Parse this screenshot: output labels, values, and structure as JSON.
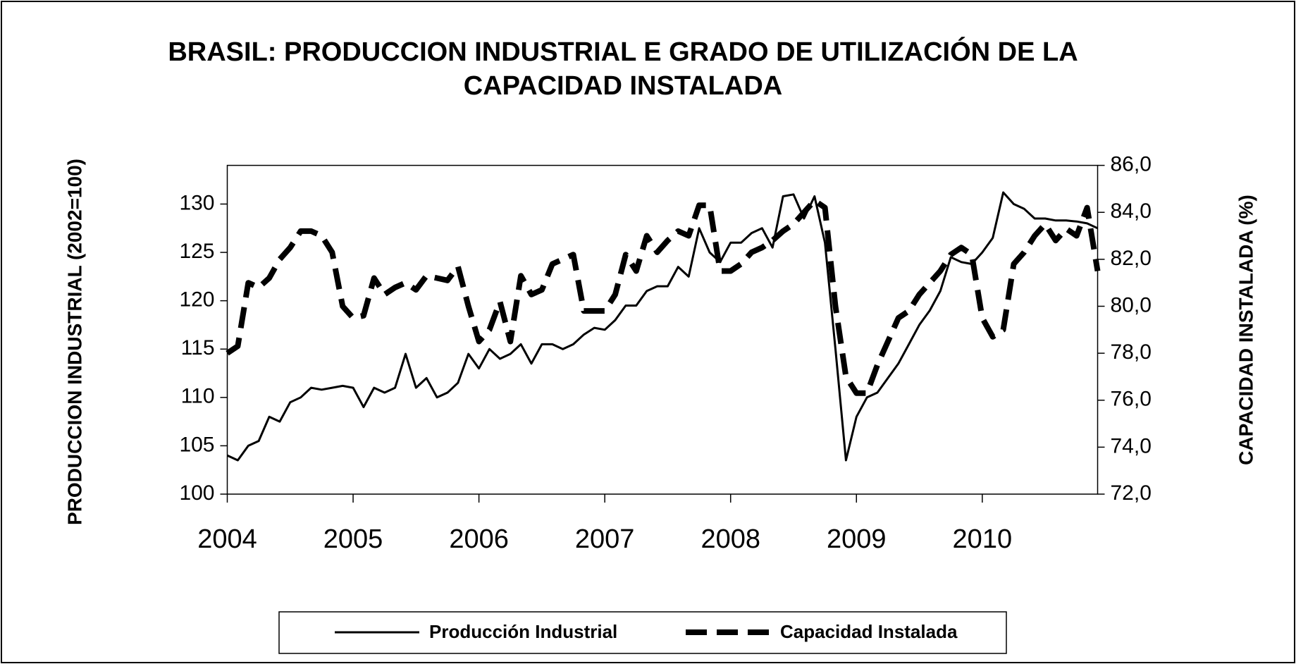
{
  "chart_data": {
    "type": "line",
    "title": [
      "BRASIL: PRODUCCION INDUSTRIAL E GRADO DE  UTILIZACIÓN DE LA",
      "CAPACIDAD INSTALADA"
    ],
    "y_label": "PRODUCCION INDUSTRIAL  (2002=100)",
    "y2_label": "CAPACIDAD INSTALADA (%)",
    "categories": [
      "2004",
      null,
      null,
      null,
      null,
      null,
      null,
      null,
      null,
      null,
      null,
      null,
      "2005",
      null,
      null,
      null,
      null,
      null,
      null,
      null,
      null,
      null,
      null,
      null,
      "2006",
      null,
      null,
      null,
      null,
      null,
      null,
      null,
      null,
      null,
      null,
      null,
      "2007",
      null,
      null,
      null,
      null,
      null,
      null,
      null,
      null,
      null,
      null,
      null,
      "2008",
      null,
      null,
      null,
      null,
      null,
      null,
      null,
      null,
      null,
      null,
      null,
      "2009",
      null,
      null,
      null,
      null,
      null,
      null,
      null,
      null,
      null,
      null,
      null,
      "2010",
      null,
      null,
      null,
      null,
      null,
      null,
      null,
      null,
      null,
      null,
      null
    ],
    "series": [
      {
        "name": "Producción Industrial",
        "color": "#000000",
        "dash": false,
        "values": [
          104,
          103.5,
          105,
          105.5,
          108,
          107.5,
          109.5,
          110,
          111,
          110.8,
          111,
          111.2,
          111,
          109,
          111,
          110.5,
          111,
          114.5,
          111,
          112,
          110,
          110.5,
          111.5,
          114.5,
          113,
          115,
          114,
          114.5,
          115.5,
          113.5,
          115.5,
          115.5,
          115,
          115.5,
          116.5,
          117.2,
          117,
          118,
          119.5,
          119.5,
          121,
          121.5,
          121.5,
          123.5,
          122.5,
          127.5,
          125,
          124,
          126,
          126,
          127,
          127.5,
          125.5,
          130.8,
          131,
          128.5,
          130.8,
          126,
          115,
          103.5,
          108,
          110,
          110.5,
          112,
          113.5,
          115.5,
          117.5,
          119,
          121,
          124.5,
          124,
          123.8,
          125,
          126.5,
          131.2,
          130,
          129.5,
          128.5,
          128.5,
          128.3,
          128.3,
          128.2,
          128,
          127.5
        ]
      },
      {
        "name": "Capacidad Instalada",
        "color": "#000000",
        "dash": true,
        "axis": "y2",
        "values": [
          78,
          78.3,
          81,
          80.8,
          81.2,
          82,
          82.5,
          83.2,
          83.2,
          83,
          82.3,
          80,
          79.5,
          79.6,
          81.2,
          80.5,
          80.8,
          81,
          80.7,
          81.3,
          81.2,
          81.1,
          81.7,
          80,
          78.5,
          79,
          80.2,
          78.5,
          81.3,
          80.5,
          80.7,
          81.8,
          82,
          82.2,
          79.8,
          79.8,
          79.8,
          80.5,
          82.2,
          81.5,
          83,
          82.3,
          82.8,
          83.2,
          83,
          84.3,
          84.3,
          81.5,
          81.5,
          81.8,
          82.3,
          82.5,
          82.8,
          83.2,
          83.5,
          84,
          84.5,
          84.2,
          80,
          77,
          76.3,
          76.3,
          77.5,
          78.5,
          79.5,
          79.8,
          80.5,
          81,
          81.5,
          82.2,
          82.5,
          82.2,
          79.5,
          78.7,
          79,
          81.8,
          82.3,
          83,
          83.5,
          82.8,
          83.3,
          83,
          84.2,
          81.5
        ]
      }
    ],
    "ylim": [
      100,
      134
    ],
    "yticks": [
      100,
      105,
      110,
      115,
      120,
      125,
      130
    ],
    "y2lim": [
      72,
      86
    ],
    "y2ticks": [
      {
        "value": 72,
        "label": "72,0"
      },
      {
        "value": 74,
        "label": "74,0"
      },
      {
        "value": 76,
        "label": "76,0"
      },
      {
        "value": 78,
        "label": "78,0"
      },
      {
        "value": 80,
        "label": "80,0"
      },
      {
        "value": 82,
        "label": "82,0"
      },
      {
        "value": 84,
        "label": "84,0"
      },
      {
        "value": 86,
        "label": "86,0"
      }
    ],
    "legend": "bottom"
  }
}
